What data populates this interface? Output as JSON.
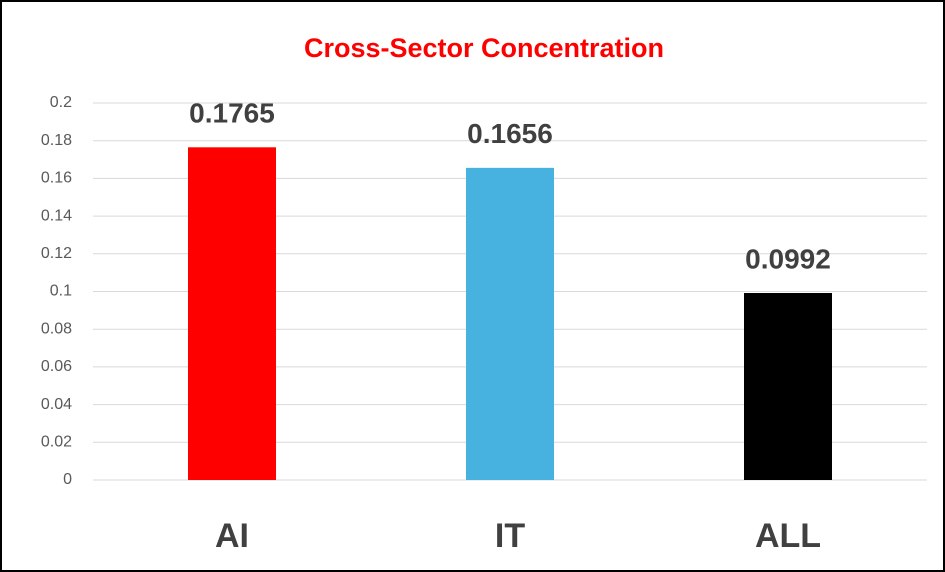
{
  "chart_data": {
    "type": "bar",
    "title": "Cross-Sector Concentration",
    "categories": [
      "AI",
      "IT",
      "ALL"
    ],
    "values": [
      0.1765,
      0.1656,
      0.0992
    ],
    "colors": [
      "#ff0000",
      "#47b1e0",
      "#000000"
    ],
    "ylim": [
      0,
      0.2
    ],
    "yticks": [
      0,
      0.02,
      0.04,
      0.06,
      0.08,
      0.1,
      0.12,
      0.14,
      0.16,
      0.18,
      0.2
    ],
    "grid": true
  }
}
